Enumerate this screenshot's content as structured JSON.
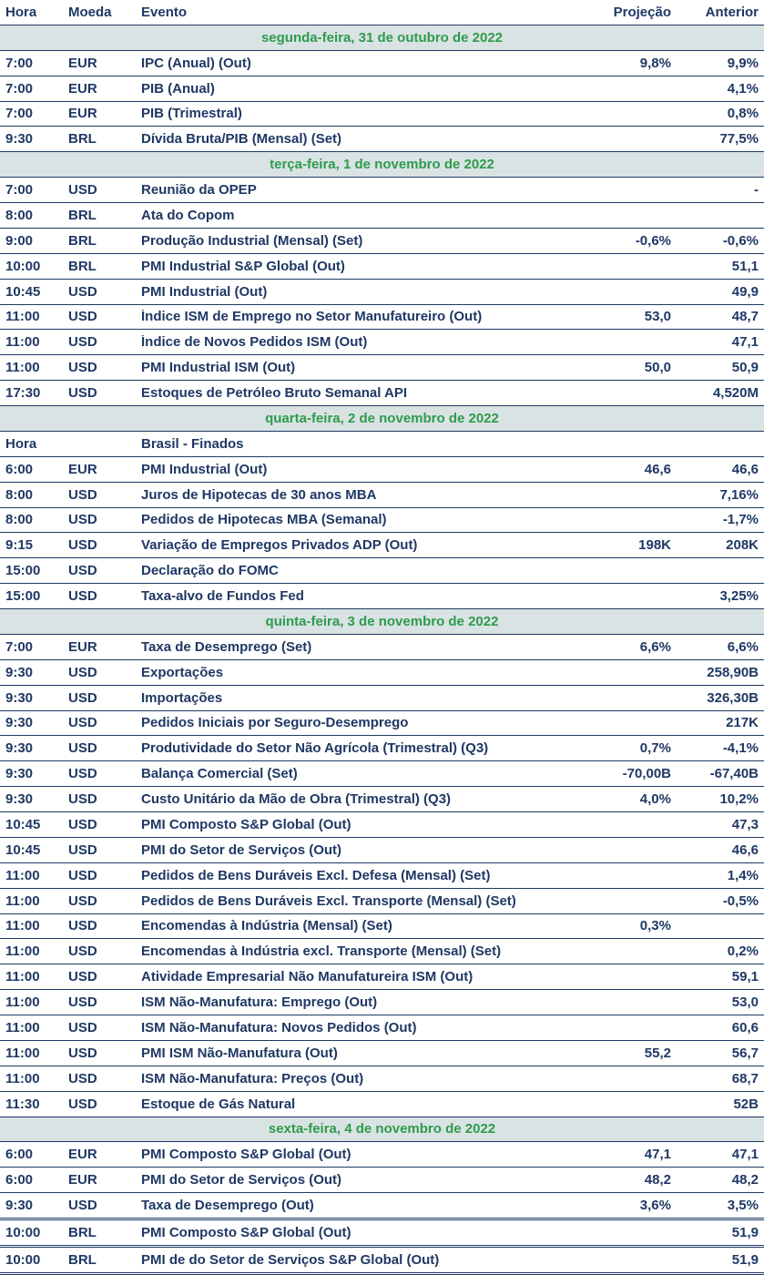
{
  "table": {
    "columns": [
      "Hora",
      "Moeda",
      "Evento",
      "Projeção",
      "Anterior"
    ],
    "colors": {
      "text_navy": "#1F3864",
      "day_header_green": "#2E9B4D",
      "day_header_background": "#DAE3E3",
      "row_background": "#FFFFFF"
    },
    "sections": [
      {
        "day": "segunda-feira, 31 de outubro de 2022",
        "rows": [
          [
            "7:00",
            "EUR",
            "IPC (Anual) (Out)",
            "9,8%",
            "9,9%"
          ],
          [
            "7:00",
            "EUR",
            "PIB (Anual)",
            "",
            "4,1%"
          ],
          [
            "7:00",
            "EUR",
            "PIB (Trimestral)",
            "",
            "0,8%"
          ],
          [
            "9:30",
            "BRL",
            "Dívida Bruta/PIB (Mensal) (Set)",
            "",
            "77,5%"
          ]
        ]
      },
      {
        "day": "terça-feira, 1 de novembro de 2022",
        "rows": [
          [
            "7:00",
            "USD",
            "Reunião da OPEP",
            "",
            "-"
          ],
          [
            "8:00",
            "BRL",
            "Ata do Copom",
            "",
            ""
          ],
          [
            "9:00",
            "BRL",
            "Produção Industrial (Mensal) (Set)",
            "-0,6%",
            "-0,6%"
          ],
          [
            "10:00",
            "BRL",
            "PMI Industrial S&P Global (Out)",
            "",
            "51,1"
          ],
          [
            "10:45",
            "USD",
            "PMI Industrial (Out)",
            "",
            "49,9"
          ],
          [
            "11:00",
            "USD",
            "Índice ISM de Emprego no Setor Manufatureiro (Out)",
            "53,0",
            "48,7"
          ],
          [
            "11:00",
            "USD",
            "Índice de Novos Pedidos ISM (Out)",
            "",
            "47,1"
          ],
          [
            "11:00",
            "USD",
            "PMI Industrial ISM (Out)",
            "50,0",
            "50,9"
          ],
          [
            "17:30",
            "USD",
            "Estoques de Petróleo Bruto Semanal API",
            "",
            "4,520M"
          ]
        ]
      },
      {
        "day": "quarta-feira, 2 de novembro de 2022",
        "rows": [
          [
            "Hora",
            "",
            "Brasil - Finados",
            "",
            ""
          ],
          [
            "6:00",
            "EUR",
            "PMI Industrial (Out)",
            "46,6",
            "46,6"
          ],
          [
            "8:00",
            "USD",
            "Juros de Hipotecas de 30 anos MBA",
            "",
            "7,16%"
          ],
          [
            "8:00",
            "USD",
            "Pedidos de Hipotecas MBA (Semanal)",
            "",
            "-1,7%"
          ],
          [
            "9:15",
            "USD",
            "Variação de Empregos Privados ADP (Out)",
            "198K",
            "208K"
          ],
          [
            "15:00",
            "USD",
            "Declaração do FOMC",
            "",
            ""
          ],
          [
            "15:00",
            "USD",
            "Taxa-alvo de Fundos Fed",
            "",
            "3,25%"
          ]
        ]
      },
      {
        "day": "quinta-feira, 3 de novembro de 2022",
        "rows": [
          [
            "7:00",
            "EUR",
            "Taxa de Desemprego (Set)",
            "6,6%",
            "6,6%"
          ],
          [
            "9:30",
            "USD",
            "Exportações",
            "",
            "258,90B"
          ],
          [
            "9:30",
            "USD",
            "Importações",
            "",
            "326,30B"
          ],
          [
            "9:30",
            "USD",
            "Pedidos Iniciais por Seguro-Desemprego",
            "",
            "217K"
          ],
          [
            "9:30",
            "USD",
            "Produtividade do Setor Não Agrícola (Trimestral) (Q3)",
            "0,7%",
            "-4,1%"
          ],
          [
            "9:30",
            "USD",
            "Balança Comercial (Set)",
            "-70,00B",
            "-67,40B"
          ],
          [
            "9:30",
            "USD",
            "Custo Unitário da Mão de Obra (Trimestral) (Q3)",
            "4,0%",
            "10,2%"
          ],
          [
            "10:45",
            "USD",
            "PMI Composto S&P Global (Out)",
            "",
            "47,3"
          ],
          [
            "10:45",
            "USD",
            "PMI do Setor de Serviços (Out)",
            "",
            "46,6"
          ],
          [
            "11:00",
            "USD",
            "Pedidos de Bens Duráveis Excl. Defesa (Mensal) (Set)",
            "",
            "1,4%"
          ],
          [
            "11:00",
            "USD",
            "Pedidos de Bens Duráveis Excl. Transporte (Mensal) (Set)",
            "",
            "-0,5%"
          ],
          [
            "11:00",
            "USD",
            "Encomendas à Indústria (Mensal) (Set)",
            "0,3%",
            ""
          ],
          [
            "11:00",
            "USD",
            "Encomendas à Indústria excl. Transporte (Mensal) (Set)",
            "",
            "0,2%"
          ],
          [
            "11:00",
            "USD",
            "Atividade Empresarial Não Manufatureira ISM (Out)",
            "",
            "59,1"
          ],
          [
            "11:00",
            "USD",
            "ISM Não-Manufatura: Emprego (Out)",
            "",
            "53,0"
          ],
          [
            "11:00",
            "USD",
            "ISM Não-Manufatura: Novos Pedidos (Out)",
            "",
            "60,6"
          ],
          [
            "11:00",
            "USD",
            "PMI ISM Não-Manufatura (Out)",
            "55,2",
            "56,7"
          ],
          [
            "11:00",
            "USD",
            "ISM Não-Manufatura: Preços (Out)",
            "",
            "68,7"
          ],
          [
            "11:30",
            "USD",
            "Estoque de Gás Natural",
            "",
            "52B"
          ]
        ]
      },
      {
        "day": "sexta-feira, 4 de novembro de 2022",
        "rows": [
          [
            "6:00",
            "EUR",
            "PMI Composto S&P Global (Out)",
            "47,1",
            "47,1"
          ],
          [
            "6:00",
            "EUR",
            "PMI do Setor de Serviços (Out)",
            "48,2",
            "48,2"
          ],
          [
            "9:30",
            "USD",
            "Taxa de Desemprego (Out)",
            "3,6%",
            "3,5%"
          ],
          [
            "10:00",
            "BRL",
            "PMI Composto S&P Global (Out)",
            "",
            "51,9"
          ],
          [
            "10:00",
            "BRL",
            "PMI de do Setor de Serviços S&P Global (Out)",
            "",
            "51,9"
          ]
        ]
      }
    ]
  }
}
